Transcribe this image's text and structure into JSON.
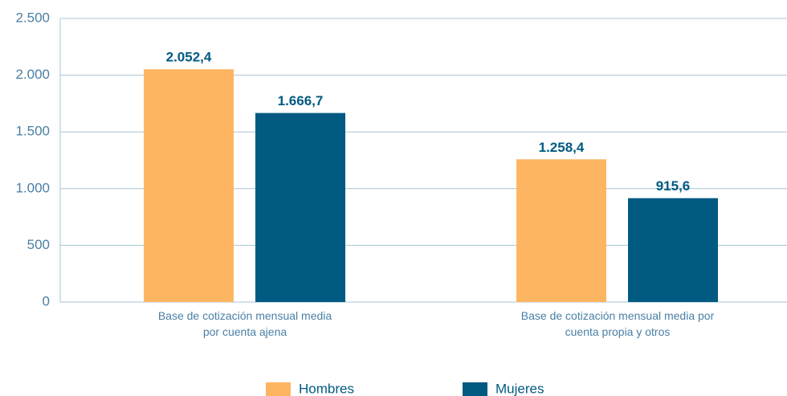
{
  "chart_data": {
    "type": "bar",
    "categories": [
      "Base de cotización mensual media\npor cuenta ajena",
      "Base de cotización mensual media por\ncuenta propia y otros"
    ],
    "series": [
      {
        "name": "Hombres",
        "color": "#fdb562",
        "values": [
          2052.4,
          1258.4
        ],
        "value_labels": [
          "2.052,4",
          "1.258,4"
        ]
      },
      {
        "name": "Mujeres",
        "color": "#005a82",
        "values": [
          1666.7,
          915.6
        ],
        "value_labels": [
          "1.666,7",
          "915,6"
        ]
      }
    ],
    "ylim": [
      0,
      2500
    ],
    "yticks": [
      0,
      500,
      {
        "value": 1000,
        "label": "1.000"
      },
      {
        "value": 1500,
        "label": "1.500"
      },
      {
        "value": 2000,
        "label": "2.000"
      },
      {
        "value": 2500,
        "label": "2.500"
      }
    ],
    "grid": true,
    "legend": "bottom"
  }
}
